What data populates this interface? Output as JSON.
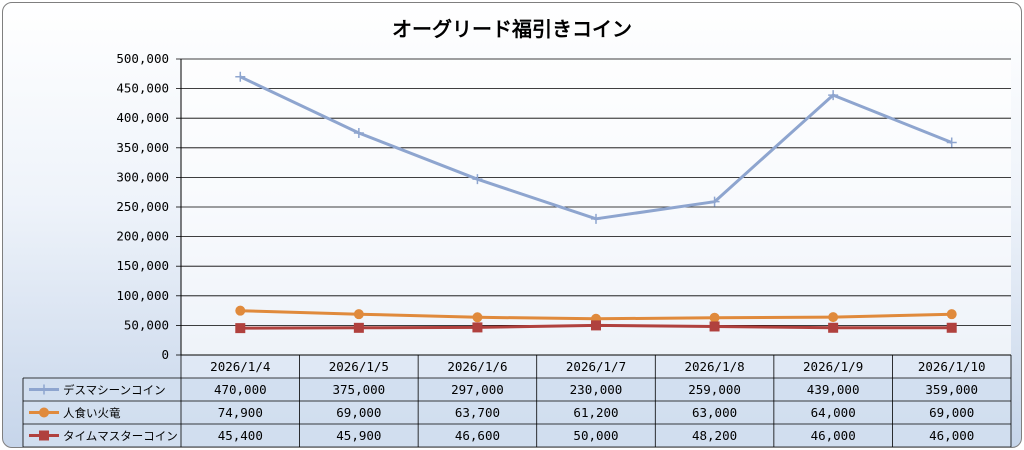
{
  "chart_data": {
    "type": "line",
    "title": "オーグリード福引きコイン",
    "categories": [
      "2026/1/4",
      "2026/1/5",
      "2026/1/6",
      "2026/1/7",
      "2026/1/8",
      "2026/1/9",
      "2026/1/10"
    ],
    "ylim": [
      0,
      500000
    ],
    "yticks": [
      "0",
      "50,000",
      "100,000",
      "150,000",
      "200,000",
      "250,000",
      "300,000",
      "350,000",
      "400,000",
      "450,000",
      "500,000"
    ],
    "grid": true,
    "legend": "data-table",
    "series": [
      {
        "name": "デスマシーンコイン",
        "color": "#8ea5cf",
        "marker": "plus",
        "values": [
          470000,
          375000,
          297000,
          230000,
          259000,
          439000,
          359000
        ],
        "labels": [
          "470,000",
          "375,000",
          "297,000",
          "230,000",
          "259,000",
          "439,000",
          "359,000"
        ]
      },
      {
        "name": "人食い火竜",
        "color": "#e08a3c",
        "marker": "circle",
        "values": [
          74900,
          69000,
          63700,
          61200,
          63000,
          64000,
          69000
        ],
        "labels": [
          "74,900",
          "69,000",
          "63,700",
          "61,200",
          "63,000",
          "64,000",
          "69,000"
        ]
      },
      {
        "name": "タイムマスターコイン",
        "color": "#b0413e",
        "marker": "square",
        "values": [
          45400,
          45900,
          46600,
          50000,
          48200,
          46000,
          46000
        ],
        "labels": [
          "45,400",
          "45,900",
          "46,600",
          "50,000",
          "48,200",
          "46,000",
          "46,000"
        ]
      }
    ]
  }
}
